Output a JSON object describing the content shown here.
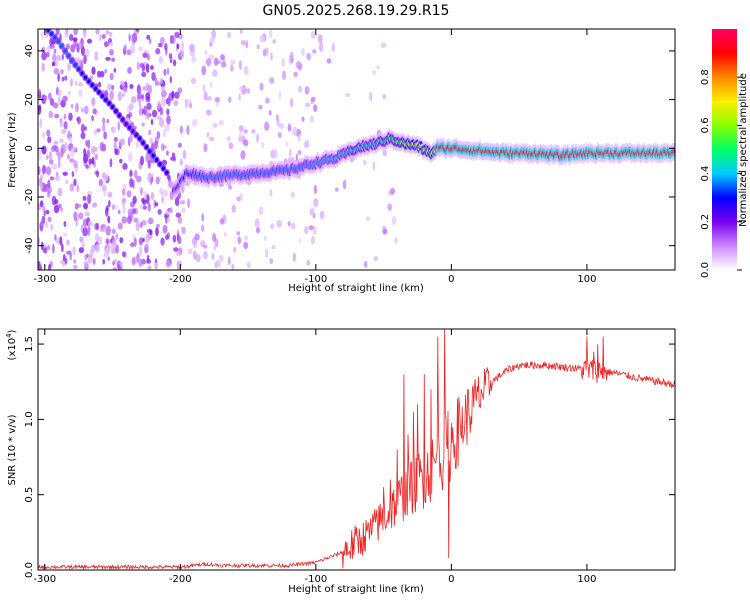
{
  "title": "GN05.2025.268.19.29.R15",
  "chart_data": [
    {
      "type": "heatmap",
      "name": "spectrogram",
      "xlabel": "Height of straight line (km)",
      "ylabel": "Frequency (Hz)",
      "xlim": [
        -305,
        165
      ],
      "ylim": [
        -50,
        49
      ],
      "xticks": [
        "-300",
        "-200",
        "-100",
        "0",
        "100"
      ],
      "xtick_values": [
        -300,
        -200,
        -100,
        0,
        100
      ],
      "yticks": [
        "-40",
        "-20",
        "0",
        "20",
        "40"
      ],
      "ytick_values": [
        -40,
        -20,
        0,
        20,
        40
      ],
      "colorbar": {
        "label": "Normalized spectral amplitude",
        "range": [
          0,
          1
        ],
        "ticks": [
          "0.0",
          "0.2",
          "0.4",
          "0.6",
          "0.8"
        ],
        "tick_values": [
          0,
          0.2,
          0.4,
          0.6,
          0.8
        ],
        "colors": [
          "#ffffff",
          "#cc88ff",
          "#7700ee",
          "#0000ff",
          "#00ccff",
          "#00ff66",
          "#88ff00",
          "#ffee00",
          "#ff8800",
          "#ff0000",
          "#ff0066"
        ]
      },
      "main_trace": {
        "x": [
          -205,
          -195,
          -180,
          -160,
          -140,
          -120,
          -100,
          -85,
          -70,
          -55,
          -45,
          -35,
          -25,
          -15,
          -10,
          0,
          20,
          40,
          60,
          80,
          100,
          120,
          140,
          165
        ],
        "freq": [
          -18,
          -10,
          -12,
          -11,
          -10,
          -9,
          -6,
          -4,
          0,
          2,
          4,
          2,
          1,
          -2,
          0,
          0,
          -1,
          -2,
          -2,
          -3,
          -2,
          -2,
          -2,
          -2
        ],
        "amplitude": [
          0.25,
          0.3,
          0.35,
          0.35,
          0.35,
          0.35,
          0.38,
          0.4,
          0.45,
          0.45,
          0.5,
          0.6,
          0.7,
          0.6,
          0.9,
          0.9,
          0.95,
          0.95,
          0.95,
          0.9,
          0.95,
          0.95,
          0.95,
          0.95
        ]
      },
      "secondary_trace": {
        "x": [
          -300,
          -290,
          -280,
          -270,
          -260,
          -250,
          -240,
          -230,
          -220,
          -210
        ],
        "freq": [
          50,
          44,
          36,
          29,
          23,
          17,
          10,
          4,
          -3,
          -10
        ],
        "amplitude": [
          0.3,
          0.35,
          0.35,
          0.3,
          0.3,
          0.3,
          0.25,
          0.3,
          0.3,
          0.3
        ]
      }
    },
    {
      "type": "line",
      "name": "snr",
      "xlabel": "Height of straight line (km)",
      "ylabel": "SNR (10 * v/v)",
      "ylabel_scale": "(x10",
      "ylabel_scale_exp": "4",
      "ylabel_scale_close": ")",
      "xlim": [
        -305,
        165
      ],
      "ylim": [
        0,
        1.6
      ],
      "xticks": [
        "-300",
        "-200",
        "-100",
        "0",
        "100"
      ],
      "xtick_values": [
        -300,
        -200,
        -100,
        0,
        100
      ],
      "yticks": [
        "0.0",
        "0.5",
        "1.0",
        "1.5"
      ],
      "ytick_values": [
        0,
        0.5,
        1.0,
        1.5
      ],
      "color": "#ee2222",
      "series": [
        {
          "name": "SNR",
          "x": [
            -305,
            -250,
            -200,
            -180,
            -170,
            -150,
            -120,
            -100,
            -80,
            -60,
            -50,
            -40,
            -30,
            -20,
            -10,
            0,
            10,
            20,
            30,
            40,
            50,
            60,
            70,
            80,
            90,
            100,
            110,
            120,
            140,
            165
          ],
          "y": [
            0.02,
            0.02,
            0.02,
            0.04,
            0.03,
            0.03,
            0.03,
            0.05,
            0.12,
            0.25,
            0.35,
            0.45,
            0.55,
            0.62,
            0.72,
            0.85,
            1.0,
            1.15,
            1.25,
            1.32,
            1.36,
            1.36,
            1.36,
            1.35,
            1.34,
            1.33,
            1.32,
            1.31,
            1.27,
            1.23
          ]
        }
      ],
      "spikes": {
        "x": [
          -60,
          -55,
          -50,
          -45,
          -40,
          -35,
          -32,
          -28,
          -25,
          -20,
          -15,
          -10,
          -5,
          -2,
          100,
          105,
          108,
          112
        ],
        "y": [
          0.3,
          0.4,
          0.55,
          0.6,
          0.8,
          1.3,
          0.9,
          1.05,
          1.1,
          1.3,
          1.2,
          1.55,
          1.6,
          0.08,
          1.55,
          1.45,
          1.5,
          1.55
        ]
      }
    }
  ]
}
